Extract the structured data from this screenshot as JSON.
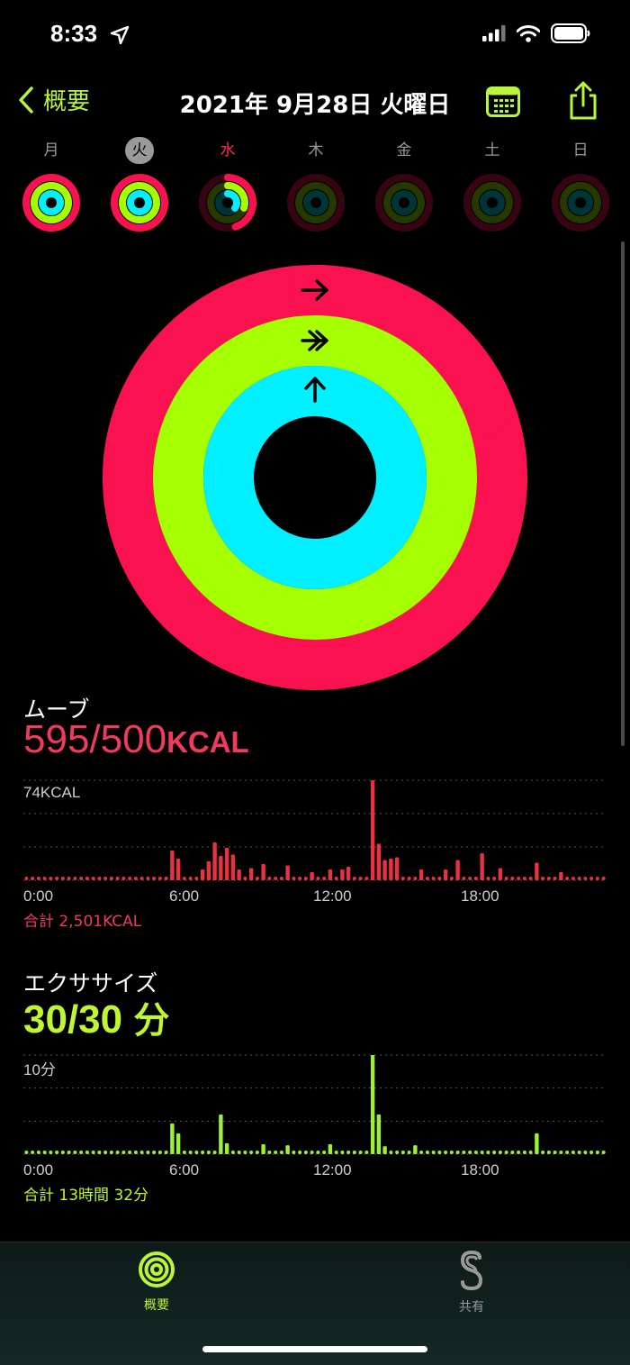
{
  "status": {
    "time": "8:33"
  },
  "nav": {
    "back_label": "概要",
    "title": "2021年 9月28日 火曜日"
  },
  "week": [
    {
      "label": "月",
      "move": 1.05,
      "exercise": 1.0,
      "stand": 1.0
    },
    {
      "label": "火",
      "move": 1.19,
      "exercise": 1.0,
      "stand": 1.0
    },
    {
      "label": "水",
      "move": 0.45,
      "exercise": 0.3,
      "stand": 0.35
    },
    {
      "label": "木",
      "move": 0,
      "exercise": 0,
      "stand": 0
    },
    {
      "label": "金",
      "move": 0,
      "exercise": 0,
      "stand": 0
    },
    {
      "label": "土",
      "move": 0,
      "exercise": 0,
      "stand": 0
    },
    {
      "label": "日",
      "move": 0,
      "exercise": 0,
      "stand": 0
    }
  ],
  "selected_day": 1,
  "rings": {
    "move": 1.19,
    "exercise": 1.0,
    "stand": 1.13
  },
  "colors": {
    "move": "#fa114f",
    "exercise": "#a6ff00",
    "stand": "#00f0ff",
    "accent": "#b9f53a",
    "move_text": "#f03a5f",
    "exercise_text": "#bff531",
    "selected_day_label": "#ff2d55"
  },
  "move": {
    "label": "ムーブ",
    "value": "595/500",
    "unit": "KCAL",
    "max_label": "74KCAL",
    "ticks": [
      "0:00",
      "6:00",
      "12:00",
      "18:00"
    ],
    "total": "合計 2,501KCAL",
    "chart_data": {
      "type": "bar",
      "ylim": [
        0,
        74
      ],
      "values": [
        4,
        4,
        4,
        4,
        4,
        4,
        4,
        4,
        4,
        4,
        4,
        4,
        4,
        4,
        4,
        4,
        4,
        4,
        4,
        4,
        4,
        4,
        4,
        4,
        4,
        4,
        4,
        4,
        4,
        4,
        4,
        4,
        4,
        4,
        4,
        4,
        4,
        4,
        4,
        4,
        4,
        4,
        4,
        4,
        4,
        4,
        4,
        4,
        4,
        4,
        4,
        4,
        4,
        4,
        4,
        4,
        4,
        4,
        4,
        4,
        4,
        4,
        4,
        4,
        4,
        4,
        4,
        4,
        4,
        4,
        4,
        4,
        4,
        4,
        4,
        4,
        4,
        4,
        4,
        4,
        4,
        4,
        4,
        4,
        4,
        4,
        4,
        4,
        4,
        4,
        4,
        4,
        4,
        4,
        4,
        4
      ],
      "overrides": {
        "24": 22,
        "25": 16,
        "29": 8,
        "30": 14,
        "31": 28,
        "32": 18,
        "33": 24,
        "34": 19,
        "35": 8,
        "37": 9,
        "39": 12,
        "43": 11,
        "47": 6,
        "50": 8,
        "52": 8,
        "53": 10,
        "57": 74,
        "58": 27,
        "59": 15,
        "60": 16,
        "61": 17,
        "65": 8,
        "69": 8,
        "71": 15,
        "75": 20,
        "78": 9,
        "84": 13,
        "88": 6
      }
    }
  },
  "exercise": {
    "label": "エクササイズ",
    "value": "30/30",
    "unit": "分",
    "max_label": "10分",
    "ticks": [
      "0:00",
      "6:00",
      "12:00",
      "18:00"
    ],
    "total": "合計 13時間 32分",
    "chart_data": {
      "type": "bar",
      "ylim": [
        0,
        10
      ],
      "values": [],
      "overrides": {
        "24": 3.1,
        "25": 2.1,
        "32": 4.0,
        "33": 1.1,
        "39": 1.0,
        "43": 0.9,
        "50": 1.0,
        "57": 10,
        "58": 4.0,
        "59": 0.8,
        "64": 0.9,
        "84": 2.1
      }
    }
  },
  "tabs": [
    {
      "label": "概要",
      "icon": "summary-rings-icon",
      "active": true
    },
    {
      "label": "共有",
      "icon": "sharing-icon",
      "active": false
    }
  ]
}
